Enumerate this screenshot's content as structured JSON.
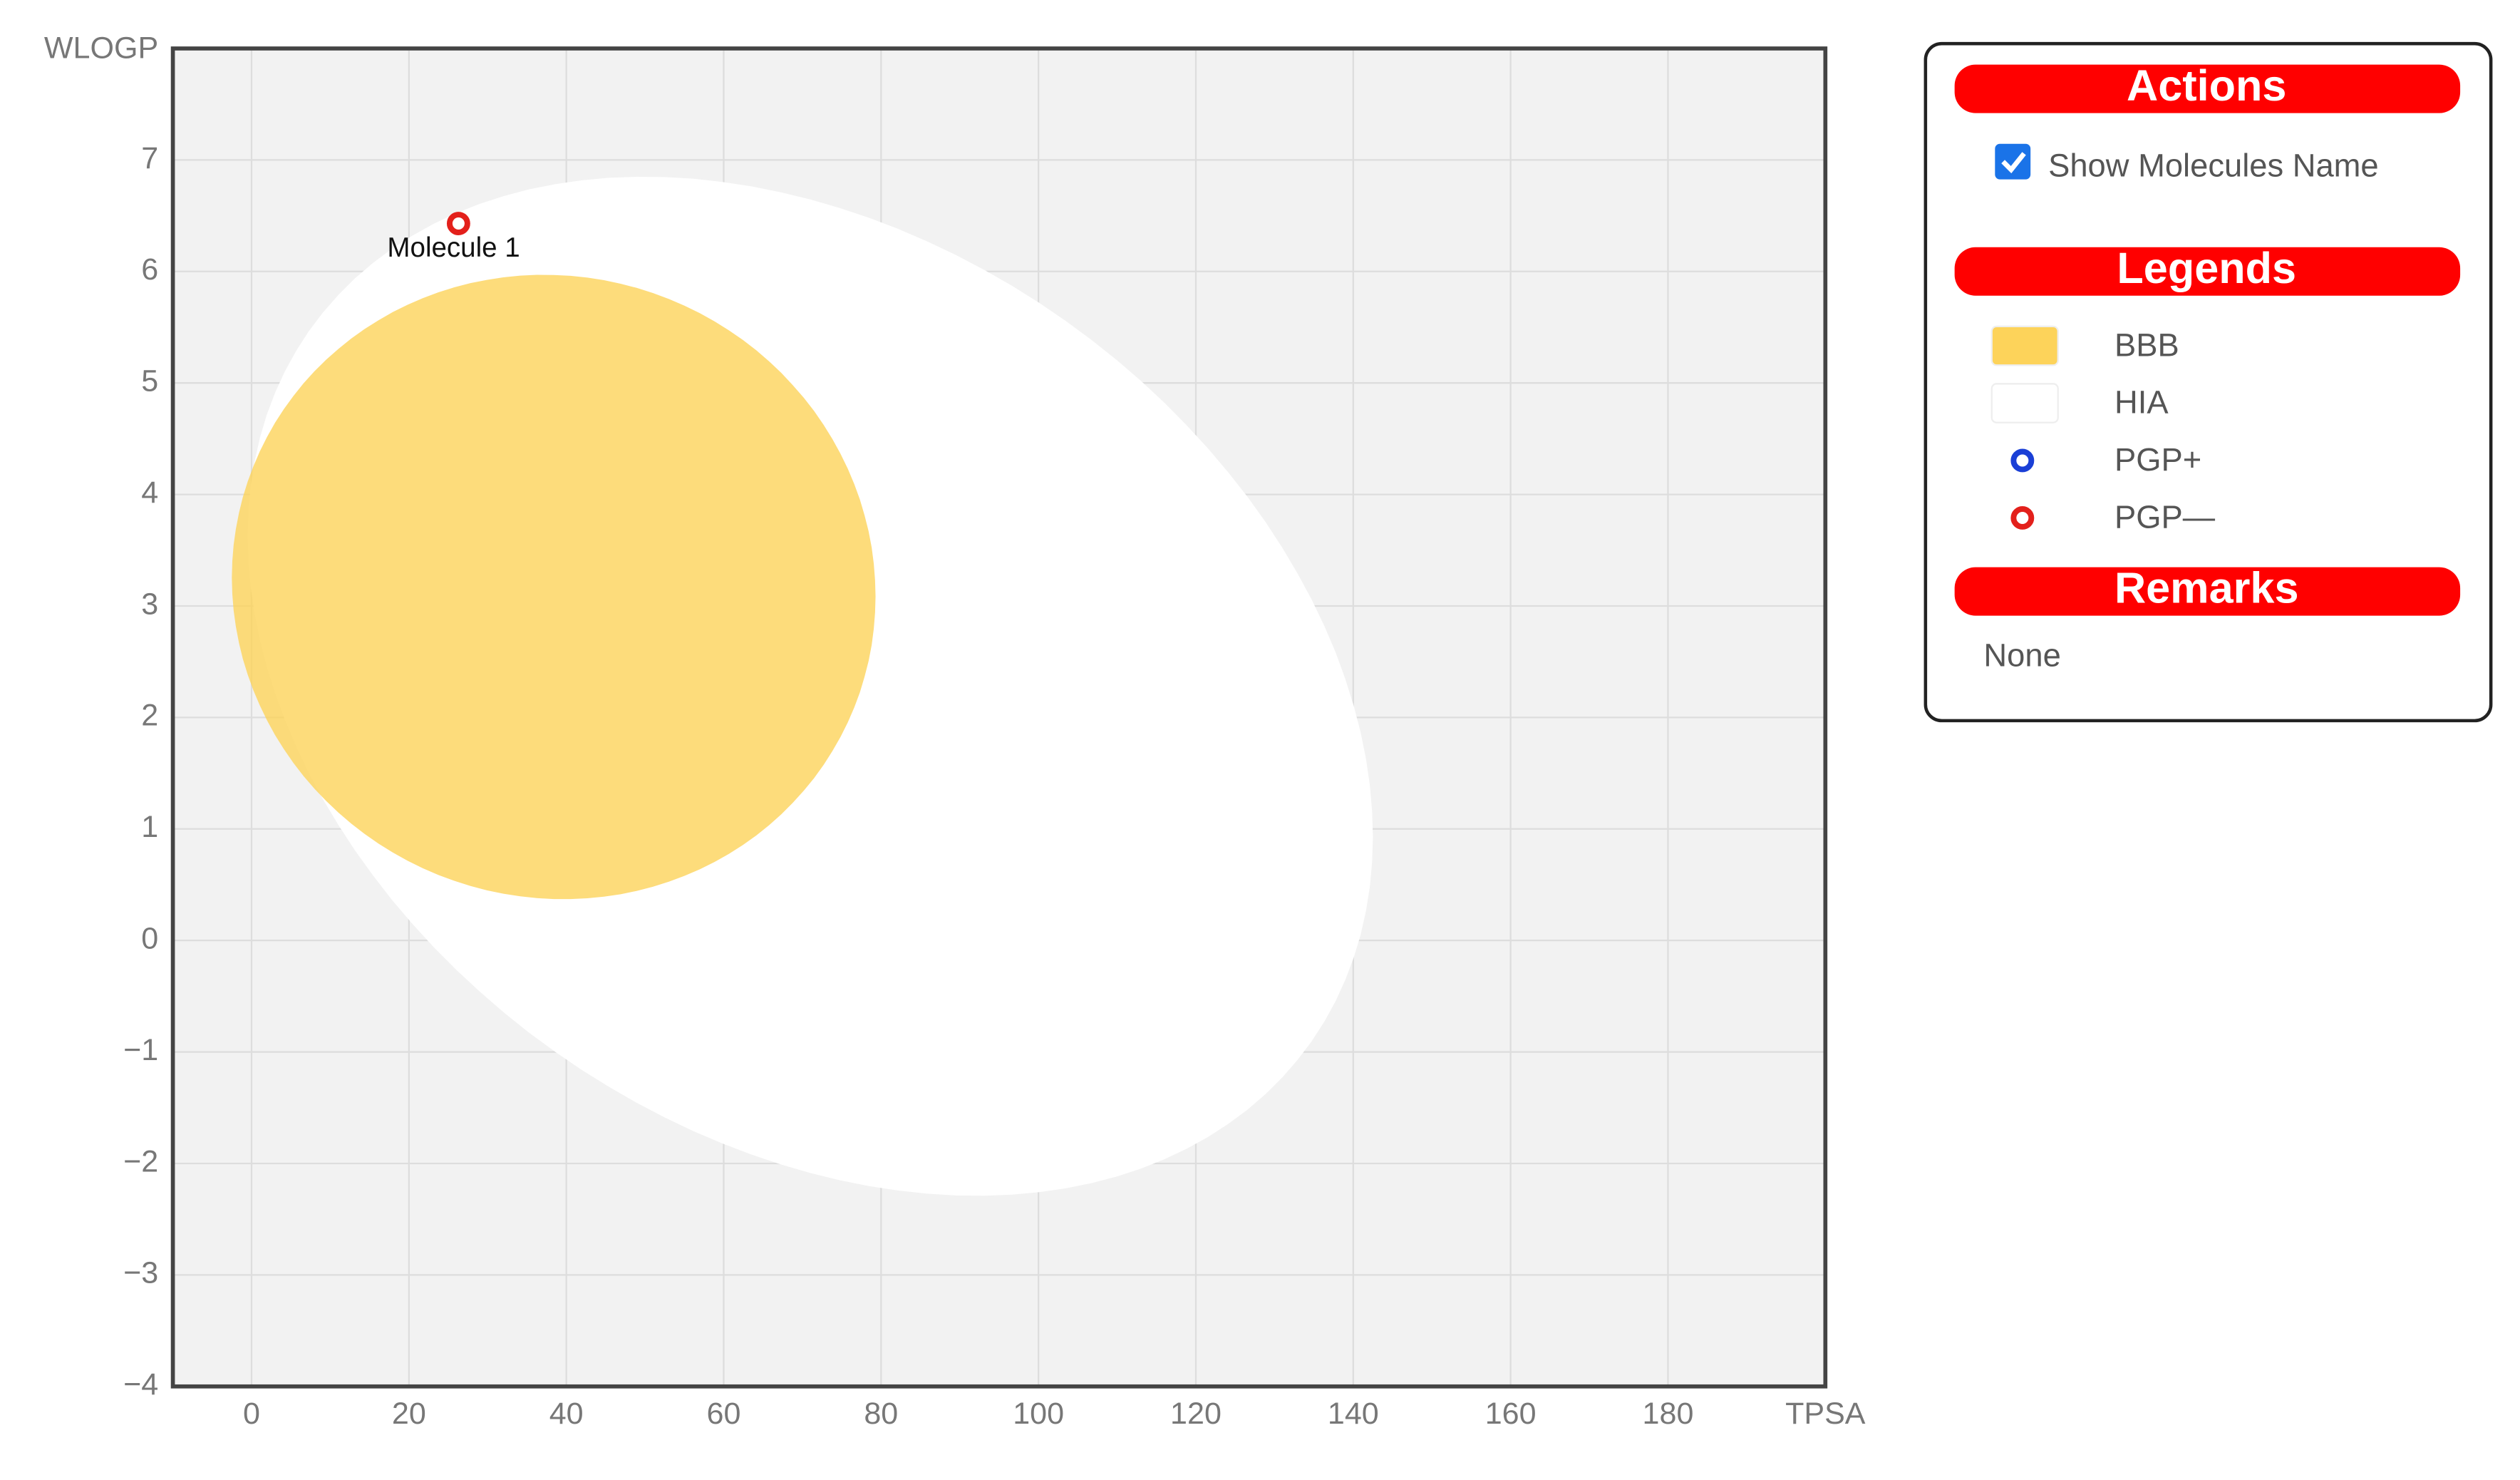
{
  "chart_data": {
    "type": "scatter",
    "x_label": "TPSA",
    "y_label": "WLOGP",
    "xlim": [
      -10,
      200
    ],
    "ylim": [
      -4,
      8
    ],
    "xticks": [
      0,
      20,
      40,
      60,
      80,
      100,
      120,
      140,
      160,
      180
    ],
    "yticks": [
      {
        "value": -4,
        "label": "−4"
      },
      {
        "value": -3,
        "label": "−3"
      },
      {
        "value": -2,
        "label": "−2"
      },
      {
        "value": -1,
        "label": "−1"
      },
      0,
      1,
      2,
      3,
      4,
      5,
      6,
      7
    ],
    "grid": true,
    "regions": [
      {
        "name": "HIA",
        "color": "#ffffff",
        "cx": 71,
        "cy": 2.28,
        "ex": 71.5,
        "ey": 4.57,
        "phase": -0.3
      },
      {
        "name": "BBB",
        "color": "#fdd35a",
        "cx": 38.4,
        "cy": 3.17,
        "ex": 40.9,
        "ey": 2.8,
        "phase": -0.03
      }
    ],
    "molecules": [
      {
        "name": "Molecule 1",
        "x": 26.3,
        "y": 6.43,
        "color": "#e3201b"
      }
    ]
  },
  "panel": {
    "actions_title": "Actions",
    "checkbox_label": "Show Molecules Name",
    "checked": true,
    "legends_title": "Legends",
    "legend": [
      {
        "label": "BBB",
        "kind": "swatch",
        "color": "#fdd35a"
      },
      {
        "label": "HIA",
        "kind": "swatch",
        "color": "#ffffff"
      },
      {
        "label": "PGP+",
        "kind": "ring",
        "color": "#1a3fd6"
      },
      {
        "label": "PGP—",
        "kind": "ring",
        "color": "#e3201b"
      }
    ],
    "remarks_title": "Remarks",
    "remarks": "None"
  }
}
